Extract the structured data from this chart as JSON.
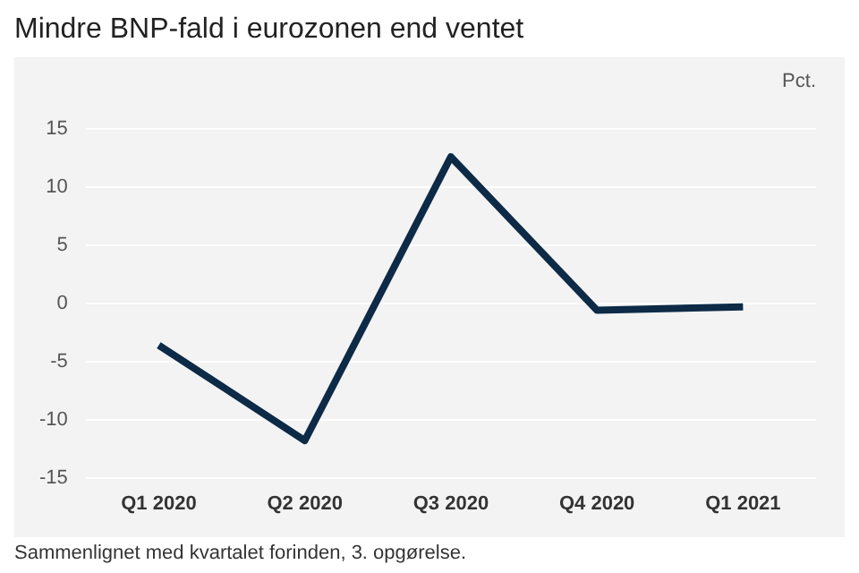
{
  "chart_data": {
    "type": "line",
    "title": "Mindre BNP-fald i eurozonen end ventet",
    "ylabel": "Pct.",
    "categories": [
      "Q1 2020",
      "Q2 2020",
      "Q3 2020",
      "Q4 2020",
      "Q1 2021"
    ],
    "series": [
      {
        "color": "#0d2a47",
        "values": [
          -3.6,
          -11.8,
          12.6,
          -0.6,
          -0.3
        ]
      }
    ],
    "ylim": [
      -15,
      15
    ],
    "yticks": [
      -15,
      -10,
      -5,
      0,
      5,
      10,
      15
    ],
    "grid": "y",
    "legend": false,
    "marker": "none",
    "line_style": "solid",
    "annotations": [
      "Sammenlignet med kvartalet forinden, 3. opgørelse."
    ]
  }
}
